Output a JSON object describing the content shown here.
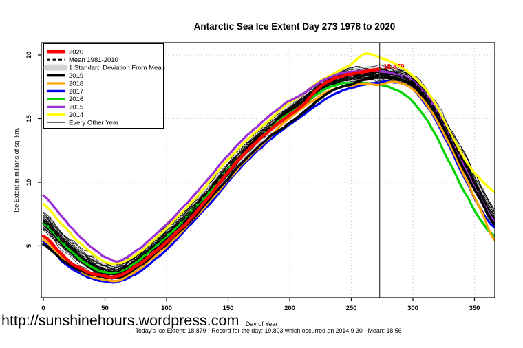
{
  "page": {
    "background": "#ffffff",
    "url_text": "http://sunshinehours.wordpress.com"
  },
  "footer": {
    "annotation": "Today's Ice Extent: 18.879  - Record for the day: 19.803 which occurred on 2014 9 30  - Mean: 18.56"
  },
  "chart_data": {
    "type": "line",
    "title": "Antarctic Sea Ice Extent Day 273 1978 to 2020",
    "xlabel": "Day of Year",
    "ylabel": "Ice Extent in millions of sq. km.",
    "xlim": [
      0,
      366
    ],
    "ylim": [
      0.9,
      21
    ],
    "x_ticks": [
      0,
      50,
      100,
      150,
      200,
      250,
      300,
      350
    ],
    "y_ticks": [
      5,
      10,
      15,
      20
    ],
    "grid": "dotted",
    "grid_color": "#c9c9c9",
    "vline": {
      "day": 273,
      "label": "18.879",
      "label_color": "#ff0000",
      "line_color": "#3c3c3c"
    },
    "x": [
      0,
      15,
      30,
      45,
      60,
      75,
      90,
      105,
      120,
      135,
      150,
      165,
      180,
      195,
      210,
      225,
      240,
      250,
      260,
      273,
      285,
      300,
      315,
      330,
      345,
      355,
      366
    ],
    "series": [
      {
        "name": "2020",
        "color": "#ff0000",
        "width": 4.6,
        "dash": null,
        "values": [
          5.8,
          4.3,
          3.2,
          2.7,
          2.6,
          3.4,
          4.5,
          5.8,
          7.2,
          8.9,
          10.8,
          12.4,
          13.8,
          14.9,
          16.0,
          17.6,
          18.3,
          18.5,
          18.7,
          18.879,
          null,
          null,
          null,
          null,
          null,
          null,
          null
        ]
      },
      {
        "name": "Mean 1981-2010",
        "color": "#000000",
        "width": 2.1,
        "dash": "7 5",
        "values": [
          6.9,
          5.4,
          4.2,
          3.3,
          3.0,
          3.9,
          5.0,
          6.3,
          7.7,
          9.4,
          11.0,
          12.6,
          14.0,
          15.3,
          16.3,
          17.5,
          18.2,
          18.4,
          18.5,
          18.56,
          18.45,
          17.9,
          16.2,
          13.7,
          10.9,
          9.1,
          7.2
        ]
      },
      {
        "name": "2019",
        "color": "#000000",
        "width": 3.6,
        "dash": null,
        "values": [
          5.1,
          3.9,
          3.0,
          2.6,
          2.5,
          3.2,
          4.3,
          5.6,
          7.0,
          8.7,
          10.3,
          11.9,
          13.3,
          14.3,
          15.4,
          16.6,
          17.4,
          17.7,
          18.0,
          18.25,
          18.2,
          17.6,
          15.9,
          13.3,
          10.4,
          8.6,
          6.7
        ]
      },
      {
        "name": "2018",
        "color": "#ffa500",
        "width": 3.3,
        "dash": null,
        "values": [
          5.5,
          4.1,
          3.0,
          2.4,
          2.3,
          3.0,
          4.1,
          5.4,
          6.9,
          8.5,
          10.2,
          11.8,
          13.2,
          14.7,
          15.8,
          16.8,
          17.4,
          17.6,
          17.75,
          17.7,
          17.9,
          17.3,
          15.6,
          12.9,
          9.9,
          7.8,
          5.5
        ]
      },
      {
        "name": "2017",
        "color": "#0000ee",
        "width": 3.3,
        "dash": null,
        "values": [
          5.3,
          3.8,
          2.8,
          2.3,
          2.15,
          2.8,
          3.9,
          5.2,
          6.7,
          8.3,
          10.0,
          11.6,
          13.0,
          14.2,
          15.2,
          16.3,
          17.1,
          17.4,
          17.65,
          17.85,
          17.9,
          17.3,
          15.5,
          12.7,
          9.8,
          7.9,
          6.5
        ]
      },
      {
        "name": "2016",
        "color": "#00d300",
        "width": 3.3,
        "dash": null,
        "values": [
          6.8,
          5.3,
          4.0,
          3.1,
          2.9,
          3.7,
          4.9,
          6.2,
          7.7,
          9.3,
          11.0,
          12.5,
          13.9,
          15.1,
          16.1,
          17.1,
          17.7,
          17.8,
          17.8,
          17.6,
          17.3,
          16.3,
          14.3,
          11.5,
          8.7,
          7.0,
          5.8
        ]
      },
      {
        "name": "2015",
        "color": "#9b30d9",
        "width": 3.3,
        "dash": null,
        "values": [
          9.0,
          7.3,
          5.7,
          4.4,
          3.8,
          4.6,
          5.8,
          7.2,
          8.7,
          10.4,
          12.1,
          13.6,
          14.9,
          16.1,
          16.9,
          17.9,
          18.5,
          18.65,
          18.75,
          18.7,
          18.55,
          17.95,
          16.3,
          13.6,
          10.6,
          8.7,
          7.0
        ]
      },
      {
        "name": "2014",
        "color": "#ffff00",
        "width": 3.3,
        "dash": null,
        "values": [
          8.3,
          6.7,
          5.2,
          4.05,
          3.6,
          4.35,
          5.5,
          6.9,
          8.4,
          10.1,
          11.8,
          13.3,
          14.6,
          15.9,
          16.9,
          18.0,
          18.8,
          19.3,
          20.1,
          19.8,
          19.3,
          18.4,
          16.7,
          14.0,
          11.4,
          10.2,
          9.3
        ]
      }
    ],
    "std_band": {
      "label": "1 Standard Deviation From Mean",
      "color": "#d3d3d3",
      "halfwidth": 0.55
    },
    "every_other_year": {
      "label": "Every Other Year",
      "color": "#000000",
      "count": 34,
      "width": 0.7
    },
    "legend": {
      "position": "top-left",
      "order": [
        "2020",
        "Mean 1981-2010",
        "1 Standard Deviation From Mean",
        "2019",
        "2018",
        "2017",
        "2016",
        "2015",
        "2014",
        "Every Other Year"
      ]
    }
  }
}
